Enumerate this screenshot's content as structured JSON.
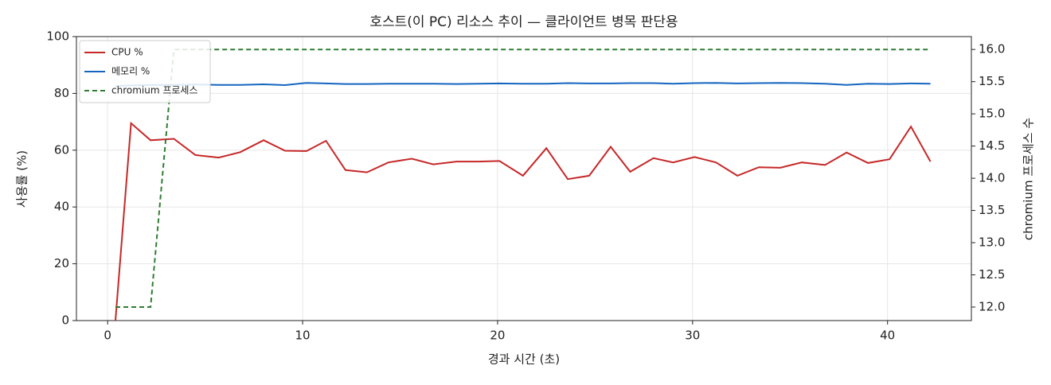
{
  "chart_data": {
    "type": "line",
    "title": "호스트(이 PC) 리소스 추이 — 클라이언트 병목 판단용",
    "xlabel": "경과 시간 (초)",
    "ylabel": "사용률 (%)",
    "y2label": "chromium 프로세스 수",
    "x": [
      0.4,
      1.2,
      2.2,
      3.4,
      4.5,
      5.7,
      6.8,
      8.0,
      9.1,
      10.2,
      11.2,
      12.2,
      13.3,
      14.4,
      15.6,
      16.7,
      17.9,
      19.0,
      20.1,
      21.3,
      22.5,
      23.6,
      24.7,
      25.8,
      26.8,
      28.0,
      29.0,
      30.1,
      31.2,
      32.3,
      33.4,
      34.5,
      35.6,
      36.8,
      37.9,
      39.0,
      40.1,
      41.2,
      42.2
    ],
    "series": [
      {
        "name": "CPU %",
        "color": "#c62828",
        "axis": "y",
        "linestyle": "solid",
        "values": [
          0,
          69.5,
          63.5,
          64,
          58.3,
          57.4,
          59.3,
          63.5,
          59.8,
          59.7,
          63.3,
          53,
          52.2,
          55.7,
          57,
          55,
          56,
          56,
          56.2,
          51,
          60.7,
          49.8,
          51,
          61.2,
          52.4,
          57.2,
          55.7,
          57.6,
          55.7,
          51,
          54,
          53.8,
          55.7,
          54.8,
          59.2,
          55.5,
          56.8,
          68.3,
          56
        ]
      },
      {
        "name": "메모리 %",
        "color": "#1565c0",
        "axis": "y",
        "linestyle": "solid",
        "values": [
          82.6,
          82.8,
          83,
          83,
          83.1,
          83,
          83,
          83.2,
          82.9,
          83.7,
          83.5,
          83.3,
          83.3,
          83.4,
          83.4,
          83.4,
          83.3,
          83.4,
          83.5,
          83.4,
          83.4,
          83.6,
          83.5,
          83.5,
          83.6,
          83.6,
          83.4,
          83.6,
          83.7,
          83.5,
          83.6,
          83.7,
          83.6,
          83.4,
          83,
          83.4,
          83.3,
          83.5,
          83.4
        ]
      },
      {
        "name": "chromium 프로세스",
        "color": "#2e7d32",
        "axis": "y2",
        "linestyle": "dashed",
        "values": [
          12,
          12,
          12,
          16,
          16,
          16,
          16,
          16,
          16,
          16,
          16,
          16,
          16,
          16,
          16,
          16,
          16,
          16,
          16,
          16,
          16,
          16,
          16,
          16,
          16,
          16,
          16,
          16,
          16,
          16,
          16,
          16,
          16,
          16,
          16,
          16,
          16,
          16,
          16
        ]
      }
    ],
    "xlim": [
      -1.6,
      44.3
    ],
    "xticks": [
      0,
      10,
      20,
      30,
      40
    ],
    "ylim": [
      0,
      100
    ],
    "yticks": [
      0,
      20,
      40,
      60,
      80,
      100
    ],
    "y2lim": [
      11.79,
      16.2
    ],
    "y2ticks": [
      {
        "value": 12,
        "label": "12.0"
      },
      12.5,
      {
        "value": 13,
        "label": "13.0"
      },
      13.5,
      {
        "value": 14,
        "label": "14.0"
      },
      14.5,
      {
        "value": 15,
        "label": "15.0"
      },
      15.5,
      {
        "value": 16,
        "label": "16.0"
      }
    ],
    "grid": true,
    "legend": "upper left"
  }
}
